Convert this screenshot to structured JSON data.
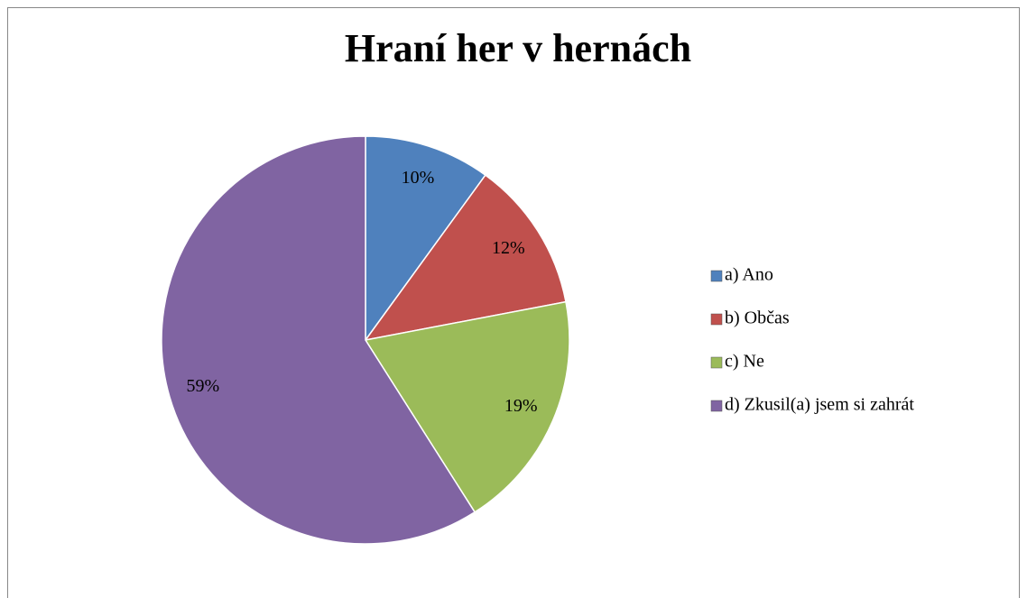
{
  "chart_data": {
    "type": "pie",
    "title": "Hraní her v hernách",
    "categories": [
      "a) Ano",
      "b) Občas",
      "c) Ne",
      "d) Zkusil(a) jsem si zahrát"
    ],
    "values": [
      10,
      12,
      19,
      59
    ],
    "value_labels": [
      "10%",
      "12%",
      "19%",
      "59%"
    ],
    "colors": [
      "#4f81bd",
      "#c0504d",
      "#9bbb59",
      "#8064a2"
    ],
    "legend": "right"
  }
}
